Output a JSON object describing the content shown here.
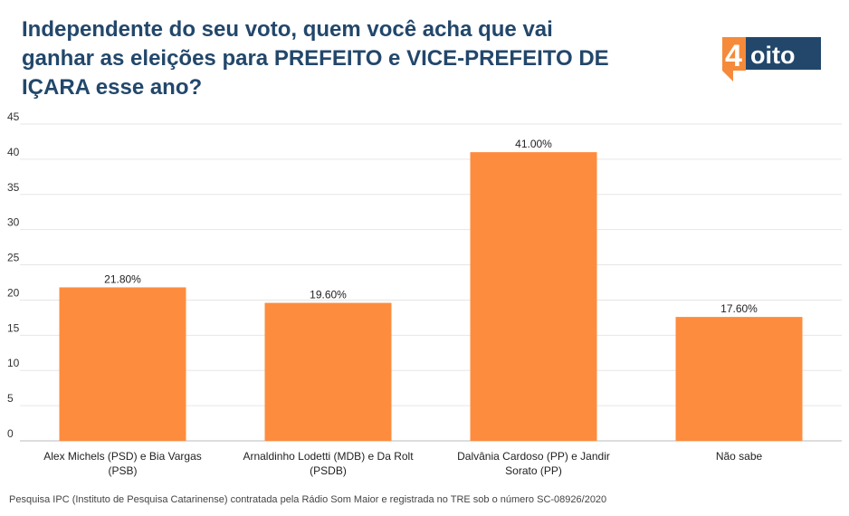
{
  "title_lines": [
    "Independente do seu voto, quem você acha que vai",
    "ganhar as eleições para PREFEITO e VICE-PREFEITO DE",
    "IÇARA esse ano?"
  ],
  "logo": {
    "digit": "4",
    "word": "oito",
    "color_orange": "#f58a3a",
    "color_navy": "#22476b"
  },
  "footnote": "Pesquisa IPC (Instituto de Pesquisa Catarinense) contratada pela Rádio Som Maior e registrada no TRE sob o número SC-08926/2020",
  "chart_data": {
    "type": "bar",
    "categories": [
      [
        "Alex Michels (PSD) e Bia Vargas",
        "(PSB)"
      ],
      [
        "Arnaldinho Lodetti (MDB) e Da Rolt",
        "(PSDB)"
      ],
      [
        "Dalvânia Cardoso (PP) e Jandir",
        "Sorato (PP)"
      ],
      [
        "Não sabe"
      ]
    ],
    "values": [
      21.8,
      19.6,
      41.0,
      17.6
    ],
    "data_labels": [
      "21.80%",
      "19.60%",
      "41.00%",
      "17.60%"
    ],
    "ylim": [
      0,
      45
    ],
    "yticks": [
      0,
      5,
      10,
      15,
      20,
      25,
      30,
      35,
      40,
      45
    ],
    "grid": true,
    "bar_color": "#fe8c3e",
    "grid_color": "#e6e6e6"
  }
}
